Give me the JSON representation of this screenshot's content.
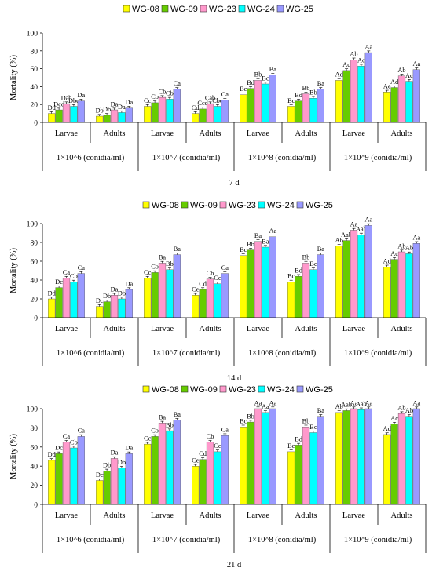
{
  "colors": {
    "WG-08": "#ffff00",
    "WG-09": "#66cc00",
    "WG-23": "#ff99cc",
    "WG-24": "#00ffff",
    "WG-25": "#9999ff"
  },
  "chart_data": [
    {
      "type": "bar",
      "title": "7 d",
      "ylabel": "Mortality (%)",
      "ylim": [
        0,
        100
      ],
      "yticks": [
        0,
        20,
        40,
        60,
        80,
        100
      ],
      "legend": [
        "WG-08",
        "WG-09",
        "WG-23",
        "WG-24",
        "WG-25"
      ],
      "legend_position": "top",
      "concentrations": [
        "1×10^6 (conidia/ml)",
        "1×10^7 (conidia/ml)",
        "1×10^8 (conidia/ml)",
        "1×10^9 (conidia/ml)"
      ],
      "categories": [
        "Larvae",
        "Adults",
        "Larvae",
        "Adults",
        "Larvae",
        "Adults",
        "Larvae",
        "Adults"
      ],
      "series": [
        {
          "name": "WG-08",
          "values": [
            10,
            7,
            18,
            10,
            31,
            18,
            47,
            34
          ],
          "labels": [
            "Dd",
            "Db",
            "Cc",
            "Cd",
            "Bc",
            "Bc",
            "Ad",
            "Ae"
          ]
        },
        {
          "name": "WG-09",
          "values": [
            14,
            8,
            22,
            15,
            38,
            24,
            58,
            39
          ],
          "labels": [
            "Dcd",
            "Db",
            "Cb",
            "Ccd",
            "Bd",
            "Bd",
            "Ac",
            "Ad"
          ]
        },
        {
          "name": "WG-23",
          "values": [
            21,
            14,
            28,
            21,
            47,
            32,
            70,
            52
          ],
          "labels": [
            "Dab",
            "Da",
            "Cb",
            "Cab",
            "Bb",
            "Bb",
            "Ab",
            "Ab"
          ]
        },
        {
          "name": "WG-24",
          "values": [
            18,
            11,
            26,
            18,
            43,
            27,
            63,
            46
          ],
          "labels": [
            "Dbc",
            "Da",
            "Cb",
            "Cbc",
            "Bc",
            "Bb",
            "Ac",
            "Ac"
          ]
        },
        {
          "name": "WG-25",
          "values": [
            24,
            16,
            37,
            25,
            53,
            37,
            78,
            59
          ],
          "labels": [
            "Da",
            "Da",
            "Ca",
            "Ca",
            "Ba",
            "Ba",
            "Aa",
            "Aa"
          ]
        }
      ]
    },
    {
      "type": "bar",
      "title": "14 d",
      "ylabel": "Mortality (%)",
      "ylim": [
        0,
        100
      ],
      "yticks": [
        0,
        20,
        40,
        60,
        80,
        100
      ],
      "legend": [
        "WG-08",
        "WG-09",
        "WG-23",
        "WG-24",
        "WG-25"
      ],
      "legend_position": "top",
      "concentrations": [
        "1×10^6 (conidia/ml)",
        "1×10^7 (conidia/ml)",
        "1×10^8 (conidia/ml)",
        "1×10^9 (conidia/ml)"
      ],
      "categories": [
        "Larvae",
        "Adults",
        "Larvae",
        "Adults",
        "Larvae",
        "Adults",
        "Larvae",
        "Adults"
      ],
      "series": [
        {
          "name": "WG-08",
          "values": [
            20,
            12,
            42,
            24,
            66,
            38,
            76,
            54
          ],
          "labels": [
            "Dd",
            "Dc",
            "Cc",
            "Ce",
            "Bc",
            "Bc",
            "Ab",
            "Ad"
          ]
        },
        {
          "name": "WG-09",
          "values": [
            32,
            17,
            48,
            30,
            72,
            44,
            82,
            62
          ],
          "labels": [
            "Dc",
            "Db",
            "Cb",
            "Cd",
            "Bb",
            "Bd",
            "Aab",
            "Ac"
          ]
        },
        {
          "name": "WG-23",
          "values": [
            42,
            24,
            58,
            41,
            81,
            58,
            93,
            70
          ],
          "labels": [
            "Ca",
            "Da",
            "Ba",
            "Cb",
            "Ba",
            "Bb",
            "Aa",
            "Ab"
          ]
        },
        {
          "name": "WG-24",
          "values": [
            38,
            20,
            51,
            36,
            75,
            51,
            88,
            68
          ],
          "labels": [
            "Cb",
            "Db",
            "Bb",
            "Cc",
            "Ba",
            "Bc",
            "Aab",
            "Ab"
          ]
        },
        {
          "name": "WG-25",
          "values": [
            47,
            30,
            67,
            47,
            86,
            67,
            98,
            79
          ],
          "labels": [
            "Ca",
            "Da",
            "Ba",
            "Ca",
            "Aa",
            "Ba",
            "Aa",
            "Aa"
          ]
        }
      ]
    },
    {
      "type": "bar",
      "title": "21 d",
      "ylabel": "Mortality (%)",
      "ylim": [
        0,
        100
      ],
      "yticks": [
        0,
        20,
        40,
        60,
        80,
        100
      ],
      "legend": [
        "WG-08",
        "WG-09",
        "WG-23",
        "WG-24",
        "WG-25"
      ],
      "legend_position": "top",
      "concentrations": [
        "1×10^6 (conidia/ml)",
        "1×10^7 (conidia/ml)",
        "1×10^8 (conidia/ml)",
        "1×10^9 (conidia/ml)"
      ],
      "categories": [
        "Larvae",
        "Adults",
        "Larvae",
        "Adults",
        "Larvae",
        "Adults",
        "Larvae",
        "Adults"
      ],
      "series": [
        {
          "name": "WG-08",
          "values": [
            46,
            25,
            63,
            40,
            81,
            55,
            96,
            73
          ],
          "labels": [
            "Dd",
            "Dc",
            "Cc",
            "Ce",
            "Bc",
            "Bc",
            "Ab",
            "Ad"
          ]
        },
        {
          "name": "WG-09",
          "values": [
            53,
            35,
            71,
            47,
            86,
            62,
            98,
            84
          ],
          "labels": [
            "Dc",
            "Db",
            "Cb",
            "Cd",
            "Bb",
            "Bd",
            "Aab",
            "Ac"
          ]
        },
        {
          "name": "WG-23",
          "values": [
            65,
            48,
            85,
            65,
            100,
            81,
            100,
            95
          ],
          "labels": [
            "Ca",
            "Da",
            "Ba",
            "Cb",
            "Aa",
            "Bb",
            "Aa",
            "Ab"
          ]
        },
        {
          "name": "WG-24",
          "values": [
            59,
            38,
            77,
            55,
            96,
            75,
            99,
            92
          ],
          "labels": [
            "Cb",
            "Db",
            "Bb",
            "Cc",
            "Aa",
            "Bc",
            "Aab",
            "Ab"
          ]
        },
        {
          "name": "WG-25",
          "values": [
            71,
            53,
            88,
            72,
            100,
            92,
            100,
            100
          ],
          "labels": [
            "Ca",
            "Da",
            "Ba",
            "Ca",
            "Aa",
            "Ba",
            "Aa",
            "Aa"
          ]
        }
      ]
    }
  ]
}
